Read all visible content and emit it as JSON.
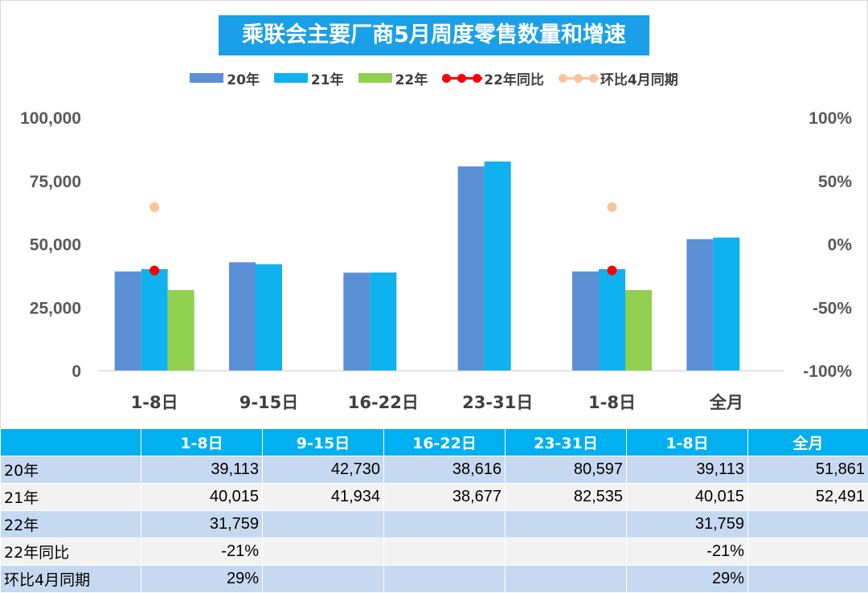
{
  "chart_data": {
    "type": "bar",
    "title": "乘联会主要厂商5月周度零售数量和增速",
    "categories": [
      "1-8日",
      "9-15日",
      "16-22日",
      "23-31日",
      "1-8日",
      "全月"
    ],
    "series": [
      {
        "name": "20年",
        "kind": "bar",
        "color": "#5b8fd6",
        "values": [
          39113,
          42730,
          38616,
          80597,
          39113,
          51861
        ]
      },
      {
        "name": "21年",
        "kind": "bar",
        "color": "#0fb1ee",
        "values": [
          40015,
          41934,
          38677,
          82535,
          40015,
          52491
        ]
      },
      {
        "name": "22年",
        "kind": "bar",
        "color": "#92d050",
        "values": [
          31759,
          null,
          null,
          null,
          31759,
          null
        ]
      },
      {
        "name": "22年同比",
        "kind": "line-marker",
        "axis": "right",
        "color": "#ff0000",
        "values": [
          -21,
          null,
          null,
          null,
          -21,
          null
        ]
      },
      {
        "name": "环比4月同期",
        "kind": "line-marker",
        "axis": "right",
        "color": "#f8c498",
        "values": [
          29,
          null,
          null,
          null,
          29,
          null
        ]
      }
    ],
    "y_left": {
      "min": 0,
      "max": 100000,
      "ticks": [
        "0",
        "25,000",
        "50,000",
        "75,000",
        "100,000"
      ]
    },
    "y_right": {
      "min": -100,
      "max": 100,
      "ticks": [
        "-100%",
        "-50%",
        "0%",
        "50%",
        "100%"
      ]
    },
    "legend_position": "top",
    "grid": false
  },
  "table": {
    "headers": [
      "",
      "1-8日",
      "9-15日",
      "16-22日",
      "23-31日",
      "1-8日",
      "全月"
    ],
    "rows": [
      {
        "label": "20年",
        "cells": [
          "39,113",
          "42,730",
          "38,616",
          "80,597",
          "39,113",
          "51,861"
        ]
      },
      {
        "label": "21年",
        "cells": [
          "40,015",
          "41,934",
          "38,677",
          "82,535",
          "40,015",
          "52,491"
        ]
      },
      {
        "label": "22年",
        "cells": [
          "31,759",
          "",
          "",
          "",
          "31,759",
          ""
        ]
      },
      {
        "label": "22年同比",
        "cells": [
          "-21%",
          "",
          "",
          "",
          "-21%",
          ""
        ]
      },
      {
        "label": "环比4月同期",
        "cells": [
          "29%",
          "",
          "",
          "",
          "29%",
          ""
        ]
      }
    ]
  }
}
